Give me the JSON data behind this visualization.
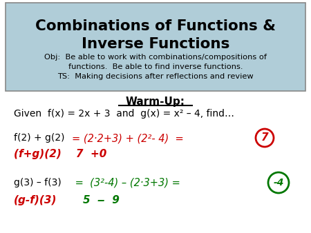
{
  "title_line1": "Combinations of Functions &",
  "title_line2": "Inverse Functions",
  "obj_line1": "Obj:  Be able to work with combinations/compositions of",
  "obj_line2": "functions.  Be able to find inverse functions.",
  "ts_line": "TS:  Making decisions after reflections and review",
  "warmup_label": "Warm-Up:",
  "given_text": "Given  f(x) = 2x + 3  and  g(x) = x² – 4, find…",
  "problem1_black": "f(2) + g(2)",
  "problem1_red": "= (2·2+3) + (2²- 4)  =",
  "answer1": "7",
  "subline1_red": "(f+g)(2)    7  +0",
  "problem2_black": "g(3) – f(3)",
  "problem2_green": " =  (3²-4) – (2·3+3) =",
  "answer2": "-4",
  "subline2_red": "(g-f)(3)",
  "subline2_green": "        5  ‒  9",
  "bg_color": "#ffffff",
  "box_color": "#b0cdd8",
  "title_color": "#000000",
  "black_color": "#000000",
  "red_color": "#cc0000",
  "green_color": "#007700"
}
